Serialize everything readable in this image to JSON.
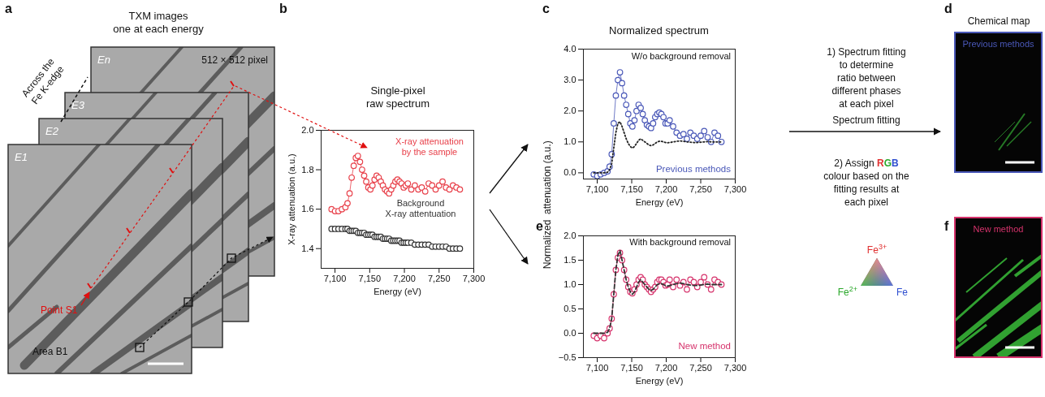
{
  "chart_data": [
    {
      "panel": "b",
      "type": "line",
      "title": [
        "Single-pixel",
        "raw spectrum"
      ],
      "x_label": "Energy (eV)",
      "y_label": "X-ray attenuation (a.u.)",
      "x": [
        7095,
        7100,
        7105,
        7110,
        7115,
        7118,
        7121,
        7124,
        7127,
        7130,
        7133,
        7136,
        7139,
        7142,
        7145,
        7148,
        7151,
        7154,
        7157,
        7160,
        7163,
        7166,
        7169,
        7172,
        7175,
        7178,
        7181,
        7184,
        7187,
        7190,
        7193,
        7196,
        7199,
        7202,
        7205,
        7210,
        7215,
        7220,
        7225,
        7230,
        7235,
        7240,
        7245,
        7250,
        7255,
        7260,
        7265,
        7270,
        7275,
        7280
      ],
      "xlim": [
        7080,
        7300
      ],
      "xticks": [
        {
          "value": 7100,
          "label": "7,100"
        },
        {
          "value": 7150,
          "label": "7,150"
        },
        {
          "value": 7200,
          "label": "7,200"
        },
        {
          "value": 7250,
          "label": "7,250"
        },
        {
          "value": 7300,
          "label": "7,300"
        }
      ],
      "ylim": [
        1.3,
        2.0
      ],
      "yticks": [
        1.4,
        1.6,
        1.8,
        {
          "value": 2.0,
          "label": "2.0"
        }
      ],
      "series": [
        {
          "name": [
            "X-ray attenuation",
            "by the sample"
          ],
          "color": "#e8404a",
          "marker": "circle",
          "line_style": "solid",
          "values": [
            1.6,
            1.59,
            1.59,
            1.6,
            1.61,
            1.63,
            1.68,
            1.76,
            1.82,
            1.86,
            1.87,
            1.84,
            1.8,
            1.77,
            1.74,
            1.71,
            1.7,
            1.72,
            1.75,
            1.77,
            1.76,
            1.74,
            1.72,
            1.7,
            1.69,
            1.68,
            1.7,
            1.72,
            1.74,
            1.75,
            1.74,
            1.73,
            1.71,
            1.72,
            1.73,
            1.7,
            1.72,
            1.7,
            1.71,
            1.69,
            1.73,
            1.72,
            1.7,
            1.72,
            1.74,
            1.71,
            1.7,
            1.72,
            1.71,
            1.7
          ]
        },
        {
          "name": [
            "Background",
            "X-ray attentuation"
          ],
          "color": "#333333",
          "marker": "circle",
          "line_style": "solid",
          "values": [
            1.5,
            1.5,
            1.5,
            1.5,
            1.5,
            1.5,
            1.49,
            1.49,
            1.49,
            1.49,
            1.48,
            1.48,
            1.48,
            1.48,
            1.47,
            1.47,
            1.47,
            1.47,
            1.46,
            1.46,
            1.46,
            1.46,
            1.45,
            1.45,
            1.45,
            1.45,
            1.44,
            1.44,
            1.44,
            1.44,
            1.44,
            1.43,
            1.43,
            1.43,
            1.43,
            1.43,
            1.42,
            1.42,
            1.42,
            1.42,
            1.42,
            1.41,
            1.41,
            1.41,
            1.41,
            1.41,
            1.4,
            1.4,
            1.4,
            1.4
          ]
        }
      ]
    },
    {
      "panel": "c",
      "type": "line",
      "title": "Normalized spectrum",
      "subtitle": "W/o background removal",
      "annotation": "Previous methods",
      "x_label": "Energy (eV)",
      "y_label": "Normalized  attenuation (a.u.)",
      "x": [
        7095,
        7100,
        7105,
        7110,
        7115,
        7118,
        7121,
        7124,
        7127,
        7130,
        7133,
        7136,
        7139,
        7142,
        7145,
        7148,
        7151,
        7154,
        7157,
        7160,
        7163,
        7166,
        7169,
        7172,
        7175,
        7178,
        7181,
        7184,
        7187,
        7190,
        7193,
        7196,
        7199,
        7202,
        7205,
        7210,
        7215,
        7220,
        7225,
        7230,
        7235,
        7240,
        7245,
        7250,
        7255,
        7260,
        7265,
        7270,
        7275,
        7280
      ],
      "xlim": [
        7080,
        7300
      ],
      "xticks": [
        {
          "value": 7100,
          "label": "7,100"
        },
        {
          "value": 7150,
          "label": "7,150"
        },
        {
          "value": 7200,
          "label": "7,200"
        },
        {
          "value": 7250,
          "label": "7,250"
        },
        {
          "value": 7300,
          "label": "7,300"
        }
      ],
      "ylim": [
        -0.2,
        4.0
      ],
      "yticks": [
        {
          "value": 0,
          "label": "0.0"
        },
        {
          "value": 1,
          "label": "1.0"
        },
        {
          "value": 2,
          "label": "2.0"
        },
        {
          "value": 3,
          "label": "3.0"
        },
        {
          "value": 4,
          "label": "4.0"
        }
      ],
      "series": [
        {
          "color": "#4a58b8",
          "marker": "circle",
          "line_style": "solid",
          "values": [
            -0.05,
            -0.1,
            -0.05,
            0.0,
            0.05,
            0.2,
            0.6,
            1.6,
            2.5,
            3.0,
            3.25,
            2.9,
            2.5,
            2.2,
            1.9,
            1.6,
            1.5,
            1.7,
            2.0,
            2.2,
            2.1,
            1.9,
            1.7,
            1.55,
            1.5,
            1.45,
            1.6,
            1.8,
            1.9,
            1.95,
            1.9,
            1.8,
            1.6,
            1.6,
            1.7,
            1.5,
            1.3,
            1.2,
            1.25,
            1.1,
            1.3,
            1.2,
            1.1,
            1.2,
            1.35,
            1.15,
            1.0,
            1.3,
            1.2,
            1.0
          ]
        },
        {
          "color": "#222222",
          "marker": "none",
          "line_style": "dotted",
          "values": [
            0,
            0,
            0,
            0,
            0.02,
            0.1,
            0.3,
            0.8,
            1.3,
            1.6,
            1.65,
            1.5,
            1.3,
            1.1,
            0.95,
            0.85,
            0.8,
            0.85,
            0.95,
            1.05,
            1.1,
            1.05,
            1.0,
            0.95,
            0.9,
            0.88,
            0.9,
            0.95,
            1.0,
            1.02,
            1.02,
            1.0,
            0.98,
            0.97,
            0.98,
            1.0,
            1.02,
            1.03,
            1.02,
            1.0,
            0.99,
            0.98,
            0.98,
            0.99,
            1.0,
            1.01,
            1.0,
            1.0,
            1.0,
            1.0
          ]
        }
      ]
    },
    {
      "panel": "e",
      "type": "line",
      "subtitle": "With background removal",
      "annotation": "New method",
      "x_label": "Energy (eV)",
      "x": [
        7095,
        7100,
        7105,
        7110,
        7115,
        7118,
        7121,
        7124,
        7127,
        7130,
        7133,
        7136,
        7139,
        7142,
        7145,
        7148,
        7151,
        7154,
        7157,
        7160,
        7163,
        7166,
        7169,
        7172,
        7175,
        7178,
        7181,
        7184,
        7187,
        7190,
        7193,
        7196,
        7199,
        7202,
        7205,
        7210,
        7215,
        7220,
        7225,
        7230,
        7235,
        7240,
        7245,
        7250,
        7255,
        7260,
        7265,
        7270,
        7275,
        7280
      ],
      "xlim": [
        7080,
        7300
      ],
      "xticks": [
        {
          "value": 7100,
          "label": "7,100"
        },
        {
          "value": 7150,
          "label": "7,150"
        },
        {
          "value": 7200,
          "label": "7,200"
        },
        {
          "value": 7250,
          "label": "7,250"
        },
        {
          "value": 7300,
          "label": "7,300"
        }
      ],
      "ylim": [
        -0.5,
        2.0
      ],
      "yticks": [
        {
          "value": -0.5,
          "label": "−0.5"
        },
        {
          "value": 0,
          "label": "0.0"
        },
        0.5,
        {
          "value": 1,
          "label": "1.0"
        },
        1.5,
        {
          "value": 2,
          "label": "2.0"
        }
      ],
      "series": [
        {
          "color": "#d6336c",
          "marker": "circle",
          "line_style": "solid",
          "values": [
            -0.05,
            -0.1,
            -0.05,
            -0.1,
            0.0,
            0.1,
            0.3,
            0.8,
            1.3,
            1.55,
            1.65,
            1.5,
            1.3,
            1.1,
            0.95,
            0.85,
            0.82,
            0.9,
            1.0,
            1.1,
            1.15,
            1.1,
            1.0,
            0.95,
            0.9,
            0.85,
            0.9,
            0.95,
            1.05,
            1.1,
            1.1,
            1.05,
            0.98,
            1.0,
            1.1,
            0.95,
            1.1,
            0.98,
            1.05,
            0.9,
            1.1,
            1.05,
            0.95,
            1.05,
            1.15,
            1.0,
            0.9,
            1.1,
            1.05,
            1.0
          ]
        },
        {
          "color": "#333333",
          "marker": "none",
          "line_style": "dashed",
          "values": [
            0,
            0,
            0,
            0,
            0.02,
            0.1,
            0.3,
            0.8,
            1.3,
            1.6,
            1.7,
            1.5,
            1.3,
            1.1,
            0.95,
            0.85,
            0.8,
            0.85,
            0.95,
            1.05,
            1.1,
            1.05,
            1.0,
            0.95,
            0.9,
            0.88,
            0.9,
            0.95,
            1.0,
            1.02,
            1.02,
            1.0,
            0.98,
            0.97,
            0.98,
            1.0,
            1.02,
            1.03,
            1.02,
            1.0,
            0.99,
            0.98,
            0.98,
            0.99,
            1.0,
            1.01,
            1.0,
            1.0,
            1.0,
            1.0
          ]
        }
      ]
    }
  ],
  "figure": {
    "panel_letters": [
      "a",
      "b",
      "c",
      "d",
      "e",
      "f"
    ],
    "panel_a": {
      "title": [
        "TXM images",
        "one at each energy"
      ],
      "edge_label": [
        "Across the",
        "Fe K-edge"
      ],
      "frames": [
        "E1",
        "E2",
        "E3",
        "En"
      ],
      "size_label": "512 × 512 pixel",
      "point_label": "Point S1",
      "area_label": "Area B1"
    },
    "fitting": {
      "step1": [
        "1) Spectrum fitting",
        "to determine",
        "ratio between",
        "different phases",
        "at each pixel"
      ],
      "arrow_label": "Spectrum fitting",
      "step2": [
        "2) Assign RGB",
        "colour based on the",
        "fitting results at",
        "each pixel"
      ],
      "triangle": [
        {
          "text": "Fe",
          "sup": "3+",
          "color": "#e03030"
        },
        {
          "text": "Fe",
          "sup": "2+",
          "color": "#2aa82a"
        },
        {
          "text": "Fe",
          "color": "#3050d0"
        }
      ]
    },
    "maps": {
      "title": "Chemical map",
      "panels": [
        {
          "label": "Previous methods",
          "color": "#4a58b8"
        },
        {
          "label": "New method",
          "color": "#d6336c"
        }
      ]
    }
  }
}
